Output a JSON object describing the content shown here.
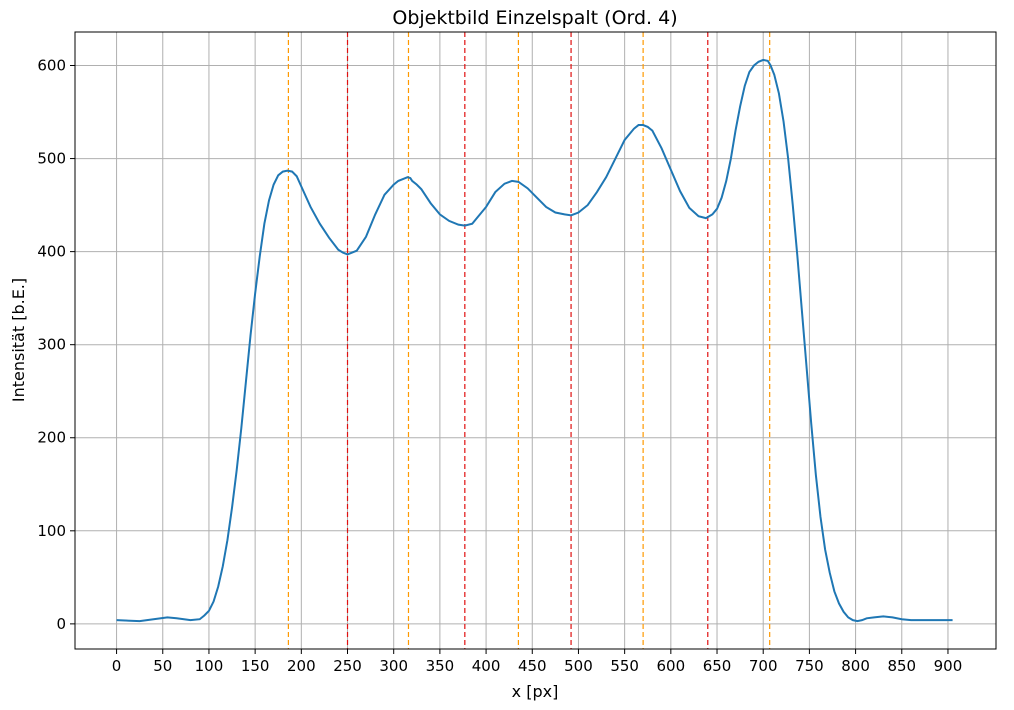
{
  "chart_data": {
    "type": "line",
    "title": "Objektbild Einzelspalt (Ord. 4)",
    "xlabel": "x [px]",
    "ylabel": "Intensität [b.E.]",
    "xlim": [
      -45,
      952
    ],
    "ylim": [
      -27,
      636
    ],
    "xticks": [
      0,
      50,
      100,
      150,
      200,
      250,
      300,
      350,
      400,
      450,
      500,
      550,
      600,
      650,
      700,
      750,
      800,
      850,
      900
    ],
    "yticks": [
      0,
      100,
      200,
      300,
      400,
      500,
      600
    ],
    "grid": true,
    "line_color": "#1f77b4",
    "series": [
      {
        "x": [
          0,
          25,
          40,
          55,
          65,
          80,
          90,
          95,
          100,
          105,
          110,
          115,
          120,
          125,
          130,
          135,
          140,
          145,
          150,
          155,
          160,
          165,
          170,
          175,
          180,
          185,
          190,
          195,
          200,
          210,
          220,
          230,
          240,
          245,
          250,
          255,
          260,
          270,
          280,
          290,
          300,
          305,
          310,
          315,
          318,
          320,
          325,
          330,
          340,
          350,
          360,
          370,
          377,
          385,
          390,
          400,
          410,
          420,
          428,
          435,
          445,
          455,
          465,
          475,
          485,
          492,
          500,
          510,
          520,
          530,
          540,
          550,
          560,
          565,
          570,
          575,
          580,
          590,
          600,
          610,
          620,
          630,
          638,
          645,
          650,
          655,
          660,
          665,
          670,
          675,
          680,
          685,
          690,
          695,
          700,
          705,
          708,
          712,
          717,
          722,
          727,
          732,
          737,
          742,
          747,
          752,
          757,
          762,
          767,
          772,
          777,
          782,
          787,
          792,
          797,
          802,
          807,
          812,
          820,
          830,
          840,
          850,
          860,
          870,
          885,
          905
        ],
        "y": [
          4,
          3,
          5,
          7,
          6,
          4,
          5,
          9,
          14,
          24,
          40,
          62,
          90,
          125,
          165,
          210,
          260,
          310,
          355,
          395,
          430,
          455,
          472,
          482,
          486,
          487,
          486,
          481,
          470,
          448,
          430,
          415,
          402,
          399,
          397,
          399,
          401,
          416,
          440,
          461,
          472,
          476,
          478,
          480,
          479,
          476,
          472,
          467,
          452,
          440,
          433,
          429,
          428,
          430,
          436,
          448,
          464,
          473,
          476,
          475,
          468,
          458,
          448,
          442,
          440,
          439,
          442,
          450,
          464,
          480,
          500,
          520,
          532,
          536,
          536,
          534,
          530,
          511,
          488,
          465,
          447,
          438,
          436,
          440,
          446,
          458,
          476,
          500,
          530,
          556,
          578,
          593,
          600,
          604,
          606,
          605,
          600,
          590,
          570,
          540,
          500,
          450,
          395,
          335,
          275,
          215,
          160,
          115,
          80,
          55,
          35,
          22,
          13,
          7,
          4,
          3,
          4,
          6,
          7,
          8,
          7,
          5,
          4,
          4,
          4,
          4
        ]
      }
    ],
    "vlines_orange": [
      186,
      316,
      435,
      570,
      707
    ],
    "vlines_red": [
      250,
      377,
      492,
      640
    ],
    "vline_orange_color": "#ff9900",
    "vline_red_color": "#e01010"
  }
}
